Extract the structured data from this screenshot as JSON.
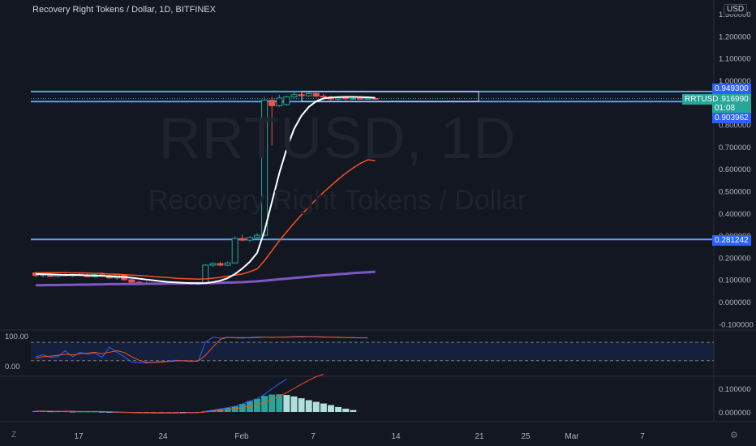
{
  "title": "Recovery Right Tokens / Dollar, 1D, BITFINEX",
  "currency": "USD",
  "watermark": {
    "symbol": "RRTUSD, 1D",
    "name": "Recovery Right Tokens / Dollar"
  },
  "price_axis_ticks": [
    "1.300000",
    "1.200000",
    "1.100000",
    "1.000000",
    "0.800000",
    "0.700000",
    "0.600000",
    "0.500000",
    "0.400000",
    "0.300000",
    "0.200000",
    "0.100000",
    "0.000000",
    "-0.100000"
  ],
  "level_labels": {
    "upper": "0.949300",
    "lower": "0.903962",
    "support": "0.281242"
  },
  "last_price": {
    "symbol": "RRTUSD",
    "price": "0.916990",
    "countdown": "01:08"
  },
  "date_ticks": [
    "17",
    "24",
    "Feb",
    "7",
    "14",
    "21",
    "25",
    "Mar",
    "7"
  ],
  "osc1_ticks": [
    "100.00",
    "0.00"
  ],
  "osc2_ticks": [
    "0.100000",
    "0.000000"
  ],
  "controls": {
    "zoom": "Z",
    "settings": "⚙"
  },
  "colors": {
    "up": "#26a69a",
    "down": "#ef5350",
    "level": "#5b9cf6",
    "ma_fast": "#ffffff",
    "ma_mid": "#f4511e",
    "ma_slow": "#7e57c2"
  },
  "chart_data": {
    "type": "candlestick",
    "candles": [
      {
        "o": 0.13,
        "h": 0.135,
        "l": 0.112,
        "c": 0.118
      },
      {
        "o": 0.118,
        "h": 0.127,
        "l": 0.11,
        "c": 0.122
      },
      {
        "o": 0.122,
        "h": 0.128,
        "l": 0.112,
        "c": 0.114
      },
      {
        "o": 0.114,
        "h": 0.124,
        "l": 0.109,
        "c": 0.121
      },
      {
        "o": 0.121,
        "h": 0.128,
        "l": 0.115,
        "c": 0.117
      },
      {
        "o": 0.117,
        "h": 0.125,
        "l": 0.112,
        "c": 0.123
      },
      {
        "o": 0.123,
        "h": 0.13,
        "l": 0.116,
        "c": 0.12
      },
      {
        "o": 0.12,
        "h": 0.126,
        "l": 0.11,
        "c": 0.113
      },
      {
        "o": 0.113,
        "h": 0.125,
        "l": 0.108,
        "c": 0.122
      },
      {
        "o": 0.122,
        "h": 0.133,
        "l": 0.115,
        "c": 0.118
      },
      {
        "o": 0.118,
        "h": 0.124,
        "l": 0.104,
        "c": 0.107
      },
      {
        "o": 0.107,
        "h": 0.127,
        "l": 0.098,
        "c": 0.121
      },
      {
        "o": 0.121,
        "h": 0.125,
        "l": 0.095,
        "c": 0.099
      },
      {
        "o": 0.099,
        "h": 0.104,
        "l": 0.085,
        "c": 0.088
      },
      {
        "o": 0.088,
        "h": 0.094,
        "l": 0.081,
        "c": 0.084
      },
      {
        "o": 0.084,
        "h": 0.09,
        "l": 0.079,
        "c": 0.082
      },
      {
        "o": 0.082,
        "h": 0.087,
        "l": 0.077,
        "c": 0.08
      },
      {
        "o": 0.08,
        "h": 0.086,
        "l": 0.076,
        "c": 0.083
      },
      {
        "o": 0.083,
        "h": 0.089,
        "l": 0.079,
        "c": 0.081
      },
      {
        "o": 0.081,
        "h": 0.088,
        "l": 0.077,
        "c": 0.084
      },
      {
        "o": 0.084,
        "h": 0.089,
        "l": 0.079,
        "c": 0.082
      },
      {
        "o": 0.082,
        "h": 0.086,
        "l": 0.077,
        "c": 0.079
      },
      {
        "o": 0.079,
        "h": 0.085,
        "l": 0.075,
        "c": 0.082
      },
      {
        "o": 0.082,
        "h": 0.17,
        "l": 0.08,
        "c": 0.165
      },
      {
        "o": 0.165,
        "h": 0.178,
        "l": 0.158,
        "c": 0.172
      },
      {
        "o": 0.172,
        "h": 0.18,
        "l": 0.16,
        "c": 0.165
      },
      {
        "o": 0.165,
        "h": 0.181,
        "l": 0.16,
        "c": 0.175
      },
      {
        "o": 0.175,
        "h": 0.295,
        "l": 0.172,
        "c": 0.285
      },
      {
        "o": 0.285,
        "h": 0.303,
        "l": 0.272,
        "c": 0.278
      },
      {
        "o": 0.278,
        "h": 0.295,
        "l": 0.27,
        "c": 0.29
      },
      {
        "o": 0.29,
        "h": 0.31,
        "l": 0.285,
        "c": 0.3
      },
      {
        "o": 0.3,
        "h": 0.925,
        "l": 0.295,
        "c": 0.91
      },
      {
        "o": 0.91,
        "h": 0.925,
        "l": 0.705,
        "c": 0.885
      },
      {
        "o": 0.885,
        "h": 0.935,
        "l": 0.88,
        "c": 0.92
      },
      {
        "o": 0.89,
        "h": 0.93,
        "l": 0.885,
        "c": 0.925
      },
      {
        "o": 0.925,
        "h": 0.945,
        "l": 0.915,
        "c": 0.935
      },
      {
        "o": 0.935,
        "h": 0.948,
        "l": 0.925,
        "c": 0.93
      },
      {
        "o": 0.93,
        "h": 0.948,
        "l": 0.925,
        "c": 0.94
      },
      {
        "o": 0.94,
        "h": 0.949,
        "l": 0.925,
        "c": 0.928
      },
      {
        "o": 0.928,
        "h": 0.938,
        "l": 0.92,
        "c": 0.925
      },
      {
        "o": 0.925,
        "h": 0.93,
        "l": 0.905,
        "c": 0.915
      },
      {
        "o": 0.915,
        "h": 0.925,
        "l": 0.908,
        "c": 0.92
      },
      {
        "o": 0.92,
        "h": 0.928,
        "l": 0.91,
        "c": 0.917
      },
      {
        "o": 0.917,
        "h": 0.923,
        "l": 0.912,
        "c": 0.918
      },
      {
        "o": 0.918,
        "h": 0.924,
        "l": 0.912,
        "c": 0.916
      },
      {
        "o": 0.916,
        "h": 0.922,
        "l": 0.913,
        "c": 0.918
      },
      {
        "o": 0.918,
        "h": 0.922,
        "l": 0.912,
        "c": 0.917
      }
    ],
    "ma_fast": [
      0.125,
      0.124,
      0.123,
      0.122,
      0.121,
      0.121,
      0.12,
      0.119,
      0.118,
      0.117,
      0.115,
      0.113,
      0.111,
      0.108,
      0.104,
      0.1,
      0.096,
      0.092,
      0.089,
      0.087,
      0.085,
      0.084,
      0.083,
      0.084,
      0.088,
      0.095,
      0.106,
      0.125,
      0.15,
      0.18,
      0.22,
      0.32,
      0.45,
      0.58,
      0.69,
      0.78,
      0.84,
      0.88,
      0.905,
      0.918,
      0.922,
      0.924,
      0.925,
      0.925,
      0.924,
      0.923,
      0.921
    ],
    "ma_mid": [
      0.13,
      0.131,
      0.131,
      0.131,
      0.131,
      0.13,
      0.13,
      0.129,
      0.128,
      0.127,
      0.125,
      0.124,
      0.122,
      0.12,
      0.118,
      0.116,
      0.113,
      0.111,
      0.109,
      0.106,
      0.104,
      0.103,
      0.102,
      0.103,
      0.106,
      0.11,
      0.115,
      0.12,
      0.125,
      0.135,
      0.148,
      0.185,
      0.23,
      0.275,
      0.315,
      0.355,
      0.392,
      0.428,
      0.462,
      0.494,
      0.524,
      0.553,
      0.58,
      0.604,
      0.625,
      0.641,
      0.637
    ],
    "ma_slow": [
      0.074,
      0.074,
      0.075,
      0.075,
      0.076,
      0.076,
      0.077,
      0.077,
      0.078,
      0.078,
      0.079,
      0.079,
      0.08,
      0.08,
      0.08,
      0.081,
      0.081,
      0.081,
      0.082,
      0.082,
      0.082,
      0.083,
      0.083,
      0.083,
      0.084,
      0.085,
      0.086,
      0.087,
      0.088,
      0.09,
      0.092,
      0.095,
      0.098,
      0.101,
      0.104,
      0.107,
      0.11,
      0.113,
      0.116,
      0.119,
      0.121,
      0.124,
      0.126,
      0.129,
      0.131,
      0.133,
      0.135
    ],
    "levels": [
      0.9493,
      0.903962,
      0.281242
    ],
    "osc1": {
      "ylim": [
        0,
        100
      ],
      "band": [
        17,
        78
      ],
      "k": [
        30,
        36,
        28,
        30,
        50,
        30,
        45,
        38,
        42,
        28,
        62,
        45,
        30,
        12,
        10,
        9,
        12,
        14,
        15,
        18,
        16,
        14,
        15,
        78,
        95,
        92,
        95,
        93,
        92,
        94,
        96,
        95,
        94,
        95,
        96,
        97,
        98,
        97,
        96,
        95,
        95,
        94,
        94,
        93,
        93,
        93
      ],
      "d": [
        25,
        30,
        32,
        35,
        38,
        36,
        40,
        42,
        45,
        40,
        45,
        50,
        44,
        30,
        18,
        12,
        11,
        12,
        14,
        16,
        17,
        16,
        15,
        35,
        62,
        88,
        94,
        94,
        94,
        93,
        94,
        95,
        95,
        95,
        95,
        96,
        96,
        97,
        97,
        96,
        95,
        95,
        94,
        94,
        93,
        93
      ]
    },
    "osc2": {
      "ylim": [
        -0.01,
        0.13
      ],
      "hist": [
        0.004,
        0.004,
        0.003,
        0.003,
        0.003,
        0.002,
        0.002,
        0.002,
        0.002,
        0.001,
        0.0,
        -0.001,
        -0.002,
        -0.003,
        -0.004,
        -0.004,
        -0.004,
        -0.004,
        -0.004,
        -0.004,
        -0.003,
        -0.003,
        -0.002,
        0.003,
        0.008,
        0.013,
        0.018,
        0.024,
        0.034,
        0.046,
        0.056,
        0.068,
        0.074,
        0.075,
        0.072,
        0.066,
        0.058,
        0.05,
        0.043,
        0.036,
        0.029,
        0.021,
        0.014,
        0.008
      ],
      "macd": [
        0.004,
        0.004,
        0.003,
        0.003,
        0.003,
        0.002,
        0.002,
        0.002,
        0.002,
        0.001,
        0.0,
        -0.001,
        -0.002,
        -0.003,
        -0.004,
        -0.004,
        -0.004,
        -0.004,
        -0.004,
        -0.004,
        -0.003,
        -0.003,
        -0.002,
        0.003,
        0.008,
        0.013,
        0.018,
        0.024,
        0.034,
        0.046,
        0.056,
        0.075,
        0.098,
        0.12,
        0.14
      ],
      "signal": [
        0.003,
        0.003,
        0.003,
        0.003,
        0.003,
        0.003,
        0.002,
        0.002,
        0.002,
        0.002,
        0.001,
        0.0,
        -0.001,
        -0.002,
        -0.003,
        -0.003,
        -0.004,
        -0.004,
        -0.004,
        -0.004,
        -0.004,
        -0.003,
        -0.003,
        0.0,
        0.003,
        0.006,
        0.01,
        0.014,
        0.019,
        0.024,
        0.03,
        0.04,
        0.052,
        0.066,
        0.082,
        0.1,
        0.118,
        0.135,
        0.15,
        0.16
      ]
    }
  }
}
